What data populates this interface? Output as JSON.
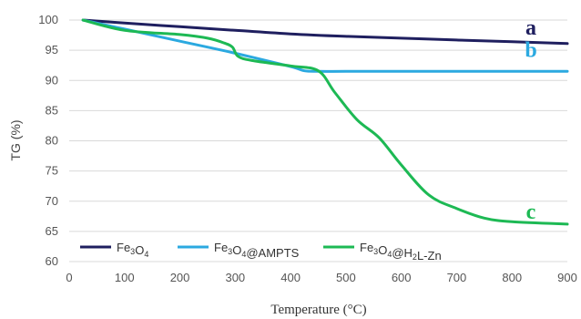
{
  "chart_data": {
    "type": "line",
    "xlabel": "Temperature (°C)",
    "ylabel": "TG (%)",
    "xlim": [
      0,
      900
    ],
    "ylim": [
      60,
      100
    ],
    "xticks": [
      0,
      100,
      200,
      300,
      400,
      500,
      600,
      700,
      800,
      900
    ],
    "yticks": [
      60,
      65,
      70,
      75,
      80,
      85,
      90,
      95,
      100
    ],
    "grid": "horizontal",
    "legend_position": "bottom-left",
    "series": [
      {
        "name": "Fe3O4",
        "legend_parts": [
          [
            "Fe",
            ""
          ],
          [
            "3",
            "sub"
          ],
          [
            "O",
            ""
          ],
          [
            "4",
            "sub"
          ]
        ],
        "color": "#1f1f5f",
        "curve_label": "a",
        "x": [
          25,
          100,
          200,
          300,
          400,
          500,
          600,
          700,
          800,
          900
        ],
        "y": [
          100,
          99.5,
          98.9,
          98.3,
          97.7,
          97.3,
          97.0,
          96.7,
          96.4,
          96.1
        ]
      },
      {
        "name": "Fe3O4@AMPTS",
        "legend_parts": [
          [
            "Fe",
            ""
          ],
          [
            "3",
            "sub"
          ],
          [
            "O",
            ""
          ],
          [
            "4",
            "sub"
          ],
          [
            "@AMPTS",
            ""
          ]
        ],
        "color": "#2ba9e0",
        "curve_label": "b",
        "x": [
          25,
          100,
          200,
          300,
          400,
          425,
          450,
          500,
          600,
          700,
          800,
          900
        ],
        "y": [
          100,
          98.5,
          96.5,
          94.5,
          92.3,
          91.6,
          91.5,
          91.5,
          91.5,
          91.5,
          91.5,
          91.5
        ]
      },
      {
        "name": "Fe3O4@H2L-Zn",
        "legend_parts": [
          [
            "Fe",
            ""
          ],
          [
            "3",
            "sub"
          ],
          [
            "O",
            ""
          ],
          [
            "4",
            "sub"
          ],
          [
            "@H",
            ""
          ],
          [
            "2",
            "sub"
          ],
          [
            "L-Zn",
            ""
          ]
        ],
        "color": "#1db954",
        "curve_label": "c",
        "x": [
          25,
          100,
          200,
          250,
          280,
          295,
          305,
          330,
          400,
          450,
          480,
          520,
          560,
          600,
          650,
          700,
          750,
          800,
          900
        ],
        "y": [
          100,
          98.3,
          97.6,
          97.0,
          96.2,
          95.5,
          94.0,
          93.3,
          92.4,
          91.6,
          88.0,
          83.5,
          80.5,
          76.0,
          71.0,
          68.8,
          67.2,
          66.6,
          66.2
        ]
      }
    ]
  }
}
